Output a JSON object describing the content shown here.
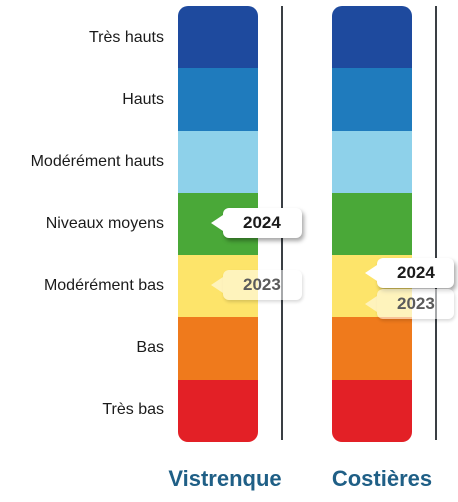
{
  "chart_data": {
    "type": "table",
    "levels": [
      "Très hauts",
      "Hauts",
      "Modérément hauts",
      "Niveaux moyens",
      "Modérément bas",
      "Bas",
      "Très bas"
    ],
    "level_colors": [
      "#1e4a9e",
      "#1f7bbd",
      "#8ed1ea",
      "#4aa838",
      "#fde46a",
      "#ef7a1c",
      "#e32026"
    ],
    "columns": [
      {
        "name": "Vistrenque",
        "markers": [
          {
            "year": "2024",
            "level": "Niveaux moyens"
          },
          {
            "year": "2023",
            "level": "Modérément bas"
          }
        ]
      },
      {
        "name": "Costières",
        "markers": [
          {
            "year": "2024",
            "level": "Modérément bas"
          },
          {
            "year": "2023",
            "level": "Modérément bas"
          }
        ]
      }
    ]
  }
}
